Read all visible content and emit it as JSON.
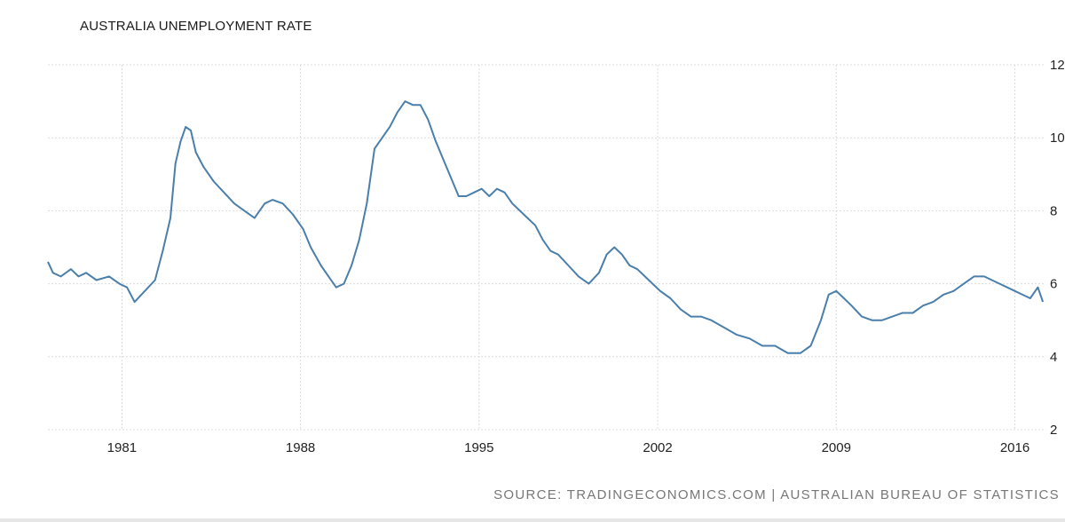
{
  "chart_data": {
    "type": "line",
    "title": "AUSTRALIA UNEMPLOYMENT RATE",
    "source": "SOURCE: TRADINGECONOMICS.COM | AUSTRALIAN BUREAU OF STATISTICS",
    "xlabel": "",
    "ylabel": "",
    "x_ticks": [
      "1981",
      "1988",
      "1995",
      "2002",
      "2009",
      "2016"
    ],
    "y_ticks": [
      "2",
      "4",
      "6",
      "8",
      "10",
      "12"
    ],
    "xlim": [
      1978.1,
      2017.2
    ],
    "ylim": [
      2,
      12
    ],
    "line_color": "#4a7fab",
    "grid": true,
    "series": [
      {
        "x": [
          1978.1,
          1978.3,
          1978.6,
          1979.0,
          1979.3,
          1979.6,
          1980.0,
          1980.5,
          1980.9,
          1981.2,
          1981.5,
          1981.9,
          1982.3,
          1982.6,
          1982.9,
          1983.1,
          1983.3,
          1983.5,
          1983.7,
          1983.9,
          1984.2,
          1984.6,
          1985.0,
          1985.4,
          1985.8,
          1986.2,
          1986.6,
          1986.9,
          1987.3,
          1987.7,
          1988.1,
          1988.4,
          1988.8,
          1989.1,
          1989.4,
          1989.7,
          1990.0,
          1990.3,
          1990.6,
          1990.9,
          1991.2,
          1991.5,
          1991.8,
          1992.1,
          1992.4,
          1992.7,
          1993.0,
          1993.3,
          1993.6,
          1993.9,
          1994.2,
          1994.5,
          1994.8,
          1995.1,
          1995.4,
          1995.7,
          1996.0,
          1996.3,
          1996.6,
          1996.9,
          1997.2,
          1997.5,
          1997.8,
          1998.1,
          1998.5,
          1998.9,
          1999.3,
          1999.7,
          2000.0,
          2000.3,
          2000.6,
          2000.9,
          2001.2,
          2001.5,
          2001.8,
          2002.1,
          2002.5,
          2002.9,
          2003.3,
          2003.7,
          2004.1,
          2004.6,
          2005.1,
          2005.6,
          2006.1,
          2006.6,
          2007.1,
          2007.6,
          2008.0,
          2008.4,
          2008.7,
          2009.0,
          2009.3,
          2009.6,
          2010.0,
          2010.4,
          2010.8,
          2011.2,
          2011.6,
          2012.0,
          2012.4,
          2012.8,
          2013.2,
          2013.6,
          2014.0,
          2014.4,
          2014.8,
          2015.1,
          2015.4,
          2015.7,
          2016.0,
          2016.3,
          2016.6,
          2016.9,
          2017.1
        ],
        "values": [
          6.6,
          6.3,
          6.2,
          6.4,
          6.2,
          6.3,
          6.1,
          6.2,
          6.0,
          5.9,
          5.5,
          5.8,
          6.1,
          6.9,
          7.8,
          9.3,
          9.9,
          10.3,
          10.2,
          9.6,
          9.2,
          8.8,
          8.5,
          8.2,
          8.0,
          7.8,
          8.2,
          8.3,
          8.2,
          7.9,
          7.5,
          7.0,
          6.5,
          6.2,
          5.9,
          6.0,
          6.5,
          7.2,
          8.2,
          9.7,
          10.0,
          10.3,
          10.7,
          11.0,
          10.9,
          10.9,
          10.5,
          9.9,
          9.4,
          8.9,
          8.4,
          8.4,
          8.5,
          8.6,
          8.4,
          8.6,
          8.5,
          8.2,
          8.0,
          7.8,
          7.6,
          7.2,
          6.9,
          6.8,
          6.5,
          6.2,
          6.0,
          6.3,
          6.8,
          7.0,
          6.8,
          6.5,
          6.4,
          6.2,
          6.0,
          5.8,
          5.6,
          5.3,
          5.1,
          5.1,
          5.0,
          4.8,
          4.6,
          4.5,
          4.3,
          4.3,
          4.1,
          4.1,
          4.3,
          5.0,
          5.7,
          5.8,
          5.6,
          5.4,
          5.1,
          5.0,
          5.0,
          5.1,
          5.2,
          5.2,
          5.4,
          5.5,
          5.7,
          5.8,
          6.0,
          6.2,
          6.2,
          6.1,
          6.0,
          5.9,
          5.8,
          5.7,
          5.6,
          5.9,
          5.5
        ]
      }
    ]
  }
}
